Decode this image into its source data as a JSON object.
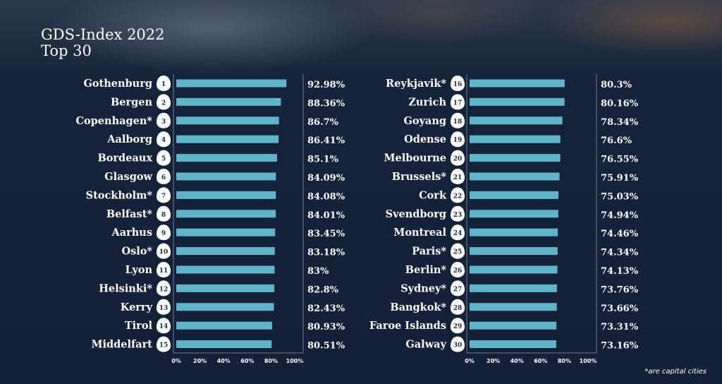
{
  "title": {
    "line1": "GDS-Index 2022",
    "line2": "Top 30"
  },
  "footnote": "*are capital cities",
  "colors": {
    "bar": "#5fb4c7",
    "text": "#ffffff",
    "badge_bg": "#ffffff",
    "badge_text": "#1c2a3f",
    "gridline": "#6e7c90"
  },
  "chart_data": [
    {
      "type": "bar",
      "orientation": "horizontal",
      "xlim": [
        0,
        100
      ],
      "x_ticks": [
        "0%",
        "20%",
        "40%",
        "60%",
        "80%",
        "100%"
      ],
      "ranks": [
        1,
        2,
        3,
        4,
        5,
        6,
        7,
        8,
        9,
        10,
        11,
        12,
        13,
        14,
        15
      ],
      "categories": [
        "Gothenburg",
        "Bergen",
        "Copenhagen*",
        "Aalborg",
        "Bordeaux",
        "Glasgow",
        "Stockholm*",
        "Belfast*",
        "Aarhus",
        "Oslo*",
        "Lyon",
        "Helsinki*",
        "Kerry",
        "Tirol",
        "Middelfart"
      ],
      "values": [
        92.98,
        88.36,
        86.7,
        86.41,
        85.1,
        84.09,
        84.08,
        84.01,
        83.45,
        83.18,
        83,
        82.8,
        82.43,
        80.93,
        80.51
      ],
      "value_labels": [
        "92.98%",
        "88.36%",
        "86.7%",
        "86.41%",
        "85.1%",
        "84.09%",
        "84.08%",
        "84.01%",
        "83.45%",
        "83.18%",
        "83%",
        "82.8%",
        "82.43%",
        "80.93%",
        "80.51%"
      ]
    },
    {
      "type": "bar",
      "orientation": "horizontal",
      "xlim": [
        0,
        100
      ],
      "x_ticks": [
        "0%",
        "20%",
        "40%",
        "60%",
        "80%",
        "100%"
      ],
      "ranks": [
        16,
        17,
        18,
        19,
        20,
        21,
        22,
        23,
        24,
        25,
        26,
        27,
        28,
        29,
        30
      ],
      "categories": [
        "Reykjavik*",
        "Zurich",
        "Goyang",
        "Odense",
        "Melbourne",
        "Brussels*",
        "Cork",
        "Svendborg",
        "Montreal",
        "Paris*",
        "Berlin*",
        "Sydney*",
        "Bangkok*",
        "Faroe Islands",
        "Galway"
      ],
      "values": [
        80.3,
        80.16,
        78.34,
        76.6,
        76.55,
        75.91,
        75.03,
        74.94,
        74.46,
        74.34,
        74.13,
        73.76,
        73.66,
        73.31,
        73.16
      ],
      "value_labels": [
        "80.3%",
        "80.16%",
        "78.34%",
        "76.6%",
        "76.55%",
        "75.91%",
        "75.03%",
        "74.94%",
        "74.46%",
        "74.34%",
        "74.13%",
        "73.76%",
        "73.66%",
        "73.31%",
        "73.16%"
      ]
    }
  ]
}
